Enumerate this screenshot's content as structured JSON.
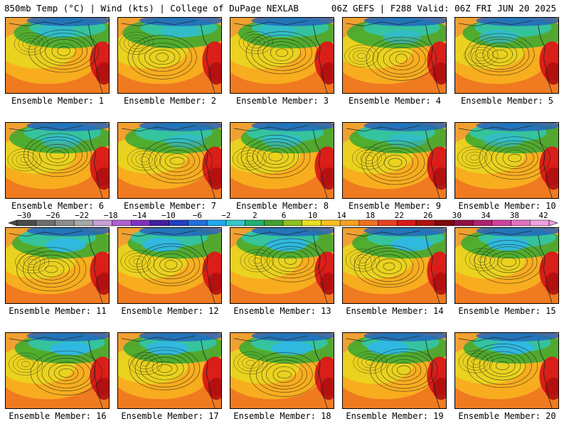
{
  "header": {
    "left_title": "850mb Temp (°C) | Wind (kts) | College of DuPage NEXLAB",
    "right_title": "06Z GEFS | F288 Valid: 06Z FRI JUN 20 2025"
  },
  "members": [
    {
      "label": "Ensemble Member: 1"
    },
    {
      "label": "Ensemble Member: 2"
    },
    {
      "label": "Ensemble Member: 3"
    },
    {
      "label": "Ensemble Member: 4"
    },
    {
      "label": "Ensemble Member: 5"
    },
    {
      "label": "Ensemble Member: 6"
    },
    {
      "label": "Ensemble Member: 7"
    },
    {
      "label": "Ensemble Member: 8"
    },
    {
      "label": "Ensemble Member: 9"
    },
    {
      "label": "Ensemble Member: 10"
    },
    {
      "label": "Ensemble Member: 11"
    },
    {
      "label": "Ensemble Member: 12"
    },
    {
      "label": "Ensemble Member: 13"
    },
    {
      "label": "Ensemble Member: 14"
    },
    {
      "label": "Ensemble Member: 15"
    },
    {
      "label": "Ensemble Member: 16"
    },
    {
      "label": "Ensemble Member: 17"
    },
    {
      "label": "Ensemble Member: 18"
    },
    {
      "label": "Ensemble Member: 19"
    },
    {
      "label": "Ensemble Member: 20"
    }
  ],
  "colorbar": {
    "labels": [
      "-30",
      "-26",
      "-22",
      "-18",
      "-14",
      "-10",
      "-6",
      "-2",
      "2",
      "6",
      "10",
      "14",
      "18",
      "22",
      "26",
      "30",
      "34",
      "38",
      "42"
    ],
    "colors": [
      "#4a4a4a",
      "#6e6e6e",
      "#8c8c8c",
      "#a8a8a8",
      "#c8a0d8",
      "#b060d0",
      "#8030c0",
      "#4020a0",
      "#2040c0",
      "#2070e0",
      "#20a8f0",
      "#30c8c8",
      "#20b070",
      "#40a030",
      "#90c020",
      "#e8e020",
      "#f8c020",
      "#f8a020",
      "#f07020",
      "#e84020",
      "#d81818",
      "#b01010",
      "#800808",
      "#901040",
      "#b02070",
      "#d040a0",
      "#e070c0",
      "#f0a0e0"
    ]
  }
}
